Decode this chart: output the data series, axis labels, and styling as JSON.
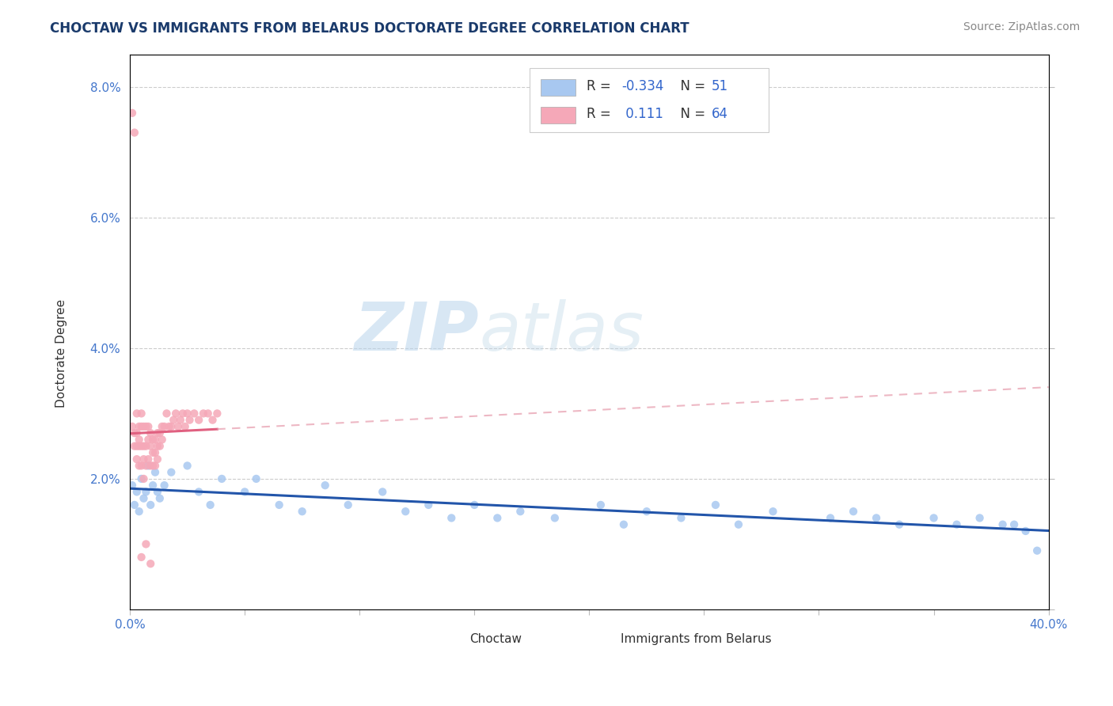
{
  "title": "CHOCTAW VS IMMIGRANTS FROM BELARUS DOCTORATE DEGREE CORRELATION CHART",
  "source_text": "Source: ZipAtlas.com",
  "ylabel": "Doctorate Degree",
  "xlim": [
    0.0,
    0.4
  ],
  "ylim": [
    0.0,
    0.085
  ],
  "xticks": [
    0.0,
    0.05,
    0.1,
    0.15,
    0.2,
    0.25,
    0.3,
    0.35,
    0.4
  ],
  "xticklabels": [
    "0.0%",
    "",
    "",
    "",
    "",
    "",
    "",
    "",
    "40.0%"
  ],
  "yticks": [
    0.0,
    0.02,
    0.04,
    0.06,
    0.08
  ],
  "yticklabels": [
    "",
    "2.0%",
    "4.0%",
    "6.0%",
    "8.0%"
  ],
  "blue_color": "#a8c8f0",
  "pink_color": "#f5a8b8",
  "blue_line_color": "#2255aa",
  "pink_line_color": "#e06080",
  "pink_dash_color": "#e8a0b0",
  "watermark": "ZIPatlas",
  "title_fontsize": 12,
  "axis_label_fontsize": 11,
  "tick_fontsize": 11,
  "source_fontsize": 10,
  "legend_fontsize": 12
}
